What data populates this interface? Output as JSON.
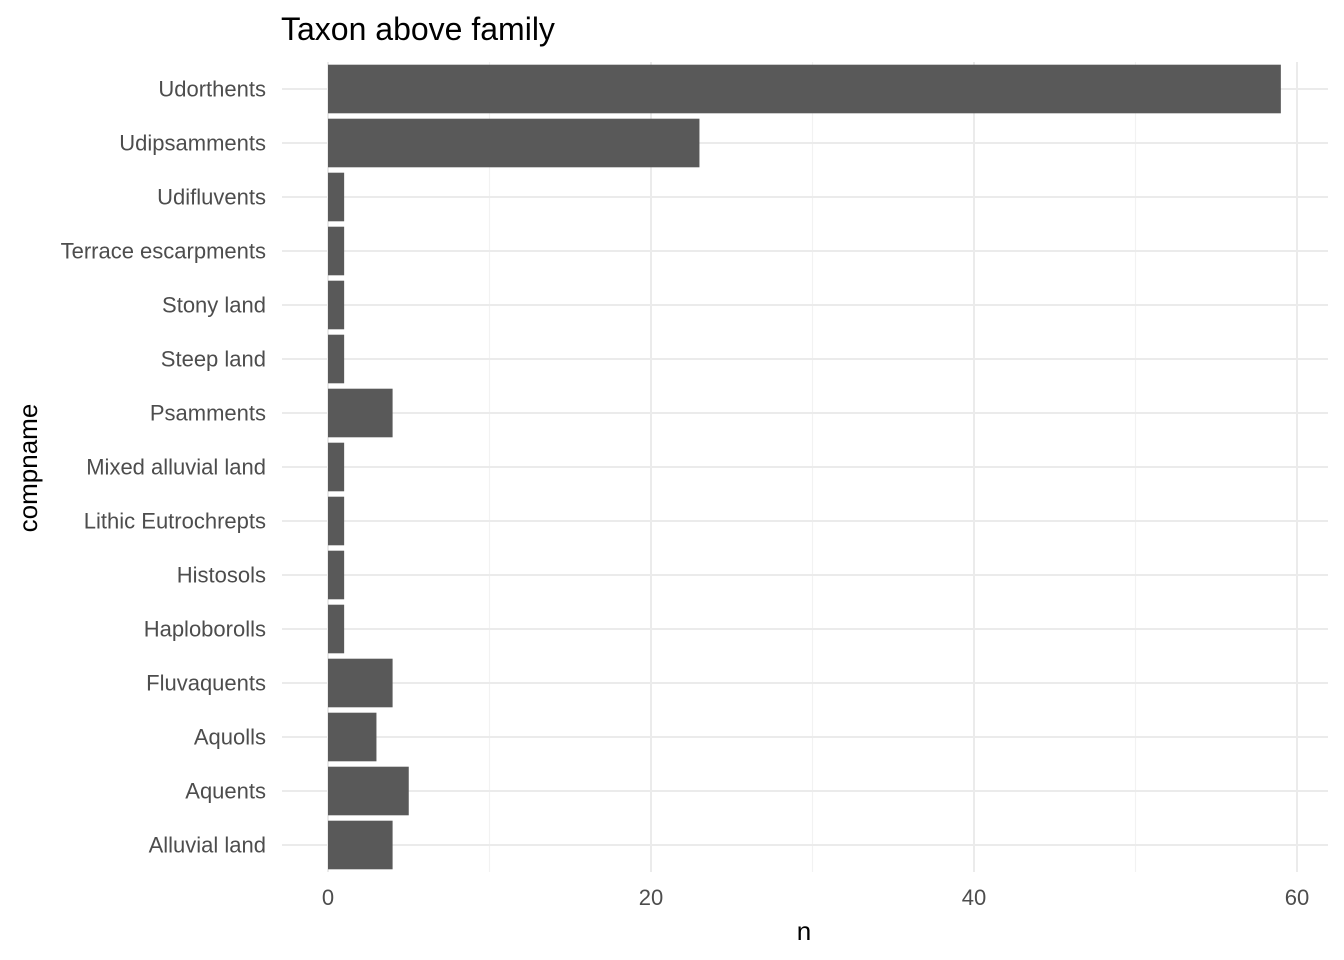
{
  "chart_data": {
    "type": "bar",
    "orientation": "horizontal",
    "title": "Taxon above family",
    "xlabel": "n",
    "ylabel": "compname",
    "categories": [
      "Alluvial land",
      "Aquents",
      "Aquolls",
      "Fluvaquents",
      "Haploborolls",
      "Histosols",
      "Lithic Eutrochrepts",
      "Mixed alluvial land",
      "Psamments",
      "Steep land",
      "Stony land",
      "Terrace escarpments",
      "Udifluvents",
      "Udipsamments",
      "Udorthents"
    ],
    "values": [
      4,
      5,
      3,
      4,
      1,
      1,
      1,
      1,
      4,
      1,
      1,
      1,
      1,
      23,
      59
    ],
    "xticks": [
      0,
      20,
      40,
      60
    ],
    "xlim": [
      0,
      60
    ],
    "grid": true,
    "colors": {
      "bar": "#595959",
      "grid": "#ebebeb",
      "background": "#ffffff"
    }
  }
}
